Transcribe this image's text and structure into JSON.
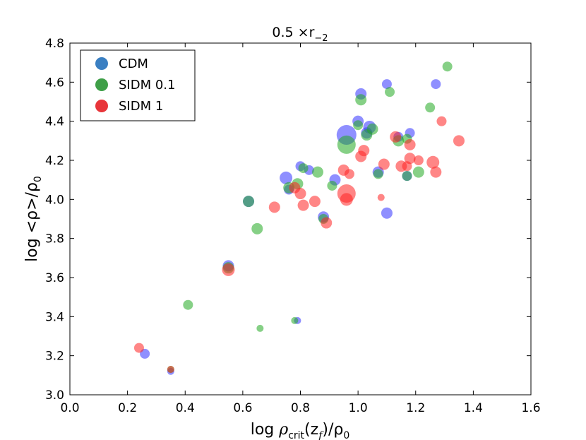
{
  "chart_data": {
    "type": "scatter",
    "title": "0.5 ×r",
    "title_subscript": "−2",
    "xlabel_prefix": "log ",
    "xlabel_rho": "ρ",
    "xlabel_sub": "crit",
    "xlabel_arg": "(z",
    "xlabel_arg_sub": "f",
    "xlabel_close": ")/ρ",
    "xlabel_close_sub": "0",
    "ylabel_main": "log <ρ>/ρ",
    "ylabel_sub": "0",
    "xlim": [
      0.0,
      1.6
    ],
    "ylim": [
      3.0,
      4.8
    ],
    "x_ticks": [
      "0.0",
      "0.2",
      "0.4",
      "0.6",
      "0.8",
      "1.0",
      "1.2",
      "1.4",
      "1.6"
    ],
    "y_ticks": [
      "3.0",
      "3.2",
      "3.4",
      "3.6",
      "3.8",
      "4.0",
      "4.2",
      "4.4",
      "4.6",
      "4.8"
    ],
    "legend_position": "upper-left",
    "series": [
      {
        "name": "CDM",
        "color": "#3333ff",
        "legend_color": "#3a7fc2",
        "points": [
          {
            "x": 0.26,
            "y": 3.21,
            "s": 7
          },
          {
            "x": 0.35,
            "y": 3.12,
            "s": 5
          },
          {
            "x": 0.55,
            "y": 3.66,
            "s": 8
          },
          {
            "x": 0.62,
            "y": 3.99,
            "s": 8
          },
          {
            "x": 0.75,
            "y": 4.11,
            "s": 9
          },
          {
            "x": 0.76,
            "y": 4.05,
            "s": 7
          },
          {
            "x": 0.8,
            "y": 4.17,
            "s": 7
          },
          {
            "x": 0.79,
            "y": 3.38,
            "s": 5
          },
          {
            "x": 0.83,
            "y": 4.15,
            "s": 7
          },
          {
            "x": 0.88,
            "y": 3.91,
            "s": 8
          },
          {
            "x": 0.92,
            "y": 4.1,
            "s": 8
          },
          {
            "x": 0.96,
            "y": 4.33,
            "s": 14
          },
          {
            "x": 1.0,
            "y": 4.4,
            "s": 8
          },
          {
            "x": 1.01,
            "y": 4.54,
            "s": 8
          },
          {
            "x": 1.03,
            "y": 4.34,
            "s": 8
          },
          {
            "x": 1.04,
            "y": 4.37,
            "s": 9
          },
          {
            "x": 1.07,
            "y": 4.14,
            "s": 8
          },
          {
            "x": 1.1,
            "y": 4.59,
            "s": 7
          },
          {
            "x": 1.1,
            "y": 3.93,
            "s": 8
          },
          {
            "x": 1.14,
            "y": 4.32,
            "s": 7
          },
          {
            "x": 1.17,
            "y": 4.12,
            "s": 7
          },
          {
            "x": 1.18,
            "y": 4.34,
            "s": 7
          },
          {
            "x": 1.27,
            "y": 4.59,
            "s": 7
          }
        ]
      },
      {
        "name": "SIDM 0.1",
        "color": "#22aa22",
        "legend_color": "#3f9f48",
        "points": [
          {
            "x": 0.35,
            "y": 3.13,
            "s": 5
          },
          {
            "x": 0.41,
            "y": 3.46,
            "s": 7
          },
          {
            "x": 0.55,
            "y": 3.65,
            "s": 8
          },
          {
            "x": 0.62,
            "y": 3.99,
            "s": 8
          },
          {
            "x": 0.65,
            "y": 3.85,
            "s": 8
          },
          {
            "x": 0.66,
            "y": 3.34,
            "s": 5
          },
          {
            "x": 0.76,
            "y": 4.06,
            "s": 8
          },
          {
            "x": 0.78,
            "y": 3.38,
            "s": 5
          },
          {
            "x": 0.79,
            "y": 4.08,
            "s": 8
          },
          {
            "x": 0.81,
            "y": 4.16,
            "s": 7
          },
          {
            "x": 0.86,
            "y": 4.14,
            "s": 8
          },
          {
            "x": 0.88,
            "y": 3.9,
            "s": 7
          },
          {
            "x": 0.91,
            "y": 4.07,
            "s": 7
          },
          {
            "x": 0.96,
            "y": 4.28,
            "s": 13
          },
          {
            "x": 1.0,
            "y": 4.38,
            "s": 7
          },
          {
            "x": 1.01,
            "y": 4.51,
            "s": 8
          },
          {
            "x": 1.03,
            "y": 4.33,
            "s": 8
          },
          {
            "x": 1.05,
            "y": 4.36,
            "s": 8
          },
          {
            "x": 1.07,
            "y": 4.13,
            "s": 7
          },
          {
            "x": 1.11,
            "y": 4.55,
            "s": 7
          },
          {
            "x": 1.14,
            "y": 4.3,
            "s": 8
          },
          {
            "x": 1.17,
            "y": 4.31,
            "s": 7
          },
          {
            "x": 1.17,
            "y": 4.12,
            "s": 7
          },
          {
            "x": 1.21,
            "y": 4.14,
            "s": 8
          },
          {
            "x": 1.25,
            "y": 4.47,
            "s": 7
          },
          {
            "x": 1.31,
            "y": 4.68,
            "s": 7
          }
        ]
      },
      {
        "name": "SIDM 1",
        "color": "#ff2222",
        "legend_color": "#e8353a",
        "points": [
          {
            "x": 0.24,
            "y": 3.24,
            "s": 7
          },
          {
            "x": 0.35,
            "y": 3.13,
            "s": 5
          },
          {
            "x": 0.55,
            "y": 3.64,
            "s": 9
          },
          {
            "x": 0.71,
            "y": 3.96,
            "s": 8
          },
          {
            "x": 0.78,
            "y": 4.06,
            "s": 8
          },
          {
            "x": 0.8,
            "y": 4.03,
            "s": 8
          },
          {
            "x": 0.81,
            "y": 3.97,
            "s": 8
          },
          {
            "x": 0.85,
            "y": 3.99,
            "s": 8
          },
          {
            "x": 0.89,
            "y": 3.88,
            "s": 8
          },
          {
            "x": 0.95,
            "y": 4.15,
            "s": 8
          },
          {
            "x": 0.96,
            "y": 4.03,
            "s": 13
          },
          {
            "x": 0.96,
            "y": 4.0,
            "s": 9
          },
          {
            "x": 0.97,
            "y": 4.13,
            "s": 7
          },
          {
            "x": 1.01,
            "y": 4.22,
            "s": 8
          },
          {
            "x": 1.02,
            "y": 4.25,
            "s": 8
          },
          {
            "x": 1.08,
            "y": 4.01,
            "s": 5
          },
          {
            "x": 1.09,
            "y": 4.18,
            "s": 8
          },
          {
            "x": 1.13,
            "y": 4.32,
            "s": 8
          },
          {
            "x": 1.15,
            "y": 4.17,
            "s": 8
          },
          {
            "x": 1.17,
            "y": 4.17,
            "s": 7
          },
          {
            "x": 1.18,
            "y": 4.21,
            "s": 8
          },
          {
            "x": 1.18,
            "y": 4.28,
            "s": 8
          },
          {
            "x": 1.21,
            "y": 4.2,
            "s": 7
          },
          {
            "x": 1.26,
            "y": 4.19,
            "s": 9
          },
          {
            "x": 1.27,
            "y": 4.14,
            "s": 8
          },
          {
            "x": 1.29,
            "y": 4.4,
            "s": 7
          },
          {
            "x": 1.35,
            "y": 4.3,
            "s": 8
          }
        ]
      }
    ]
  }
}
